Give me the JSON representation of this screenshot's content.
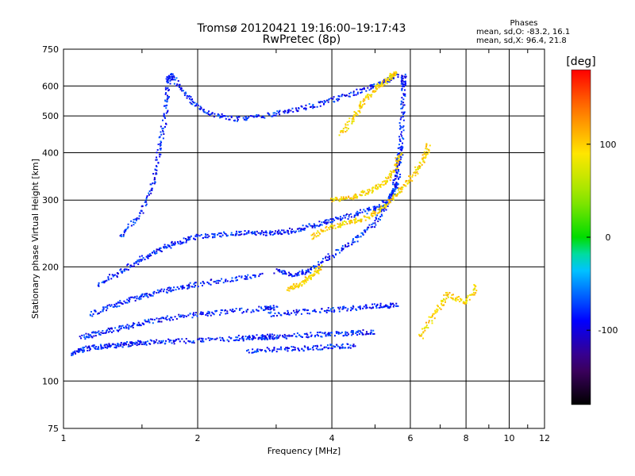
{
  "chart_data": {
    "type": "scatter",
    "title": "Tromsø 20120421 19:16:00–19:17:43",
    "subtitle": "RwPretec (8p)",
    "phases_box": {
      "heading": "Phases",
      "line_o": "mean, sd,O: -83.2, 16.1",
      "line_x": "mean, sd,X:  96.4, 21.8"
    },
    "xlabel": "Frequency [MHz]",
    "ylabel": "Stationary phase Virtual Height [km]",
    "xscale": "log",
    "yscale": "log",
    "xlim": [
      1,
      12
    ],
    "ylim": [
      75,
      750
    ],
    "x_ticks": [
      1,
      2,
      4,
      6,
      8,
      10,
      12
    ],
    "x_tick_labels": [
      "1",
      "2",
      "4",
      "6",
      "8",
      "10",
      "12"
    ],
    "y_ticks": [
      75,
      100,
      200,
      300,
      400,
      500,
      600,
      750
    ],
    "y_tick_labels": [
      "75",
      "100",
      "200",
      "300",
      "400",
      "500",
      "600",
      "750"
    ],
    "grid": true,
    "colorbar": {
      "label": "[deg]",
      "range": [
        -180,
        180
      ],
      "ticks": [
        -100,
        0,
        100
      ],
      "tick_labels": [
        "-100",
        "0",
        "100"
      ]
    },
    "series": [
      {
        "mode": "O",
        "mean_phase_deg": -83.2,
        "traces": [
          {
            "points": [
              [
                1.05,
                118
              ],
              [
                1.1,
                121
              ],
              [
                1.2,
                123
              ],
              [
                1.3,
                124
              ],
              [
                1.4,
                125
              ],
              [
                1.5,
                126
              ],
              [
                1.7,
                127
              ],
              [
                2.0,
                128
              ],
              [
                2.4,
                129
              ],
              [
                2.8,
                130
              ],
              [
                3.0,
                131
              ]
            ]
          },
          {
            "points": [
              [
                1.1,
                130
              ],
              [
                1.2,
                134
              ],
              [
                1.35,
                138
              ],
              [
                1.5,
                142
              ],
              [
                1.7,
                146
              ],
              [
                2.0,
                150
              ],
              [
                2.3,
                152
              ],
              [
                2.8,
                155
              ],
              [
                3.0,
                156
              ]
            ]
          },
          {
            "points": [
              [
                1.15,
                150
              ],
              [
                1.3,
                158
              ],
              [
                1.45,
                165
              ],
              [
                1.6,
                170
              ],
              [
                1.8,
                176
              ],
              [
                2.0,
                180
              ],
              [
                2.4,
                186
              ],
              [
                2.8,
                190
              ]
            ]
          },
          {
            "points": [
              [
                1.2,
                180
              ],
              [
                1.35,
                195
              ],
              [
                1.5,
                210
              ],
              [
                1.65,
                222
              ],
              [
                1.8,
                232
              ],
              [
                2.0,
                240
              ],
              [
                2.3,
                244
              ],
              [
                2.6,
                246
              ],
              [
                2.9,
                245
              ],
              [
                3.2,
                248
              ],
              [
                3.6,
                256
              ],
              [
                4.0,
                265
              ],
              [
                4.5,
                275
              ],
              [
                5.0,
                285
              ],
              [
                5.4,
                300
              ],
              [
                5.6,
                330
              ],
              [
                5.7,
                400
              ],
              [
                5.75,
                500
              ],
              [
                5.8,
                600
              ],
              [
                5.8,
                640
              ]
            ]
          },
          {
            "points": [
              [
                1.35,
                240
              ],
              [
                1.5,
                280
              ],
              [
                1.6,
                340
              ],
              [
                1.65,
                420
              ],
              [
                1.7,
                520
              ],
              [
                1.72,
                620
              ],
              [
                1.75,
                640
              ],
              [
                1.9,
                560
              ],
              [
                2.1,
                510
              ],
              [
                2.4,
                490
              ],
              [
                2.8,
                500
              ],
              [
                3.2,
                515
              ],
              [
                3.7,
                535
              ],
              [
                4.2,
                560
              ],
              [
                4.8,
                590
              ],
              [
                5.3,
                620
              ],
              [
                5.6,
                640
              ]
            ]
          },
          {
            "points": [
              [
                3.0,
                195
              ],
              [
                3.3,
                190
              ],
              [
                3.6,
                196
              ],
              [
                4.0,
                215
              ],
              [
                4.5,
                235
              ],
              [
                5.0,
                260
              ],
              [
                5.4,
                300
              ],
              [
                5.6,
                350
              ],
              [
                5.7,
                420
              ]
            ]
          },
          {
            "points": [
              [
                2.9,
                150
              ],
              [
                3.4,
                152
              ],
              [
                4.0,
                154
              ],
              [
                4.6,
                156
              ],
              [
                5.2,
                158
              ],
              [
                5.6,
                158
              ]
            ]
          },
          {
            "points": [
              [
                2.5,
                130
              ],
              [
                3.0,
                131
              ],
              [
                3.5,
                132
              ],
              [
                4.0,
                133
              ],
              [
                4.5,
                134
              ],
              [
                5.0,
                135
              ]
            ]
          },
          {
            "points": [
              [
                2.6,
                120
              ],
              [
                3.0,
                121
              ],
              [
                3.5,
                122
              ],
              [
                4.0,
                123
              ],
              [
                4.5,
                124
              ]
            ]
          }
        ]
      },
      {
        "mode": "X",
        "mean_phase_deg": 96.4,
        "traces": [
          {
            "points": [
              [
                3.6,
                240
              ],
              [
                4.0,
                255
              ],
              [
                4.4,
                262
              ],
              [
                4.8,
                270
              ],
              [
                5.2,
                285
              ],
              [
                5.6,
                310
              ],
              [
                6.0,
                340
              ],
              [
                6.4,
                380
              ],
              [
                6.6,
                420
              ]
            ]
          },
          {
            "points": [
              [
                4.0,
                300
              ],
              [
                4.4,
                305
              ],
              [
                4.8,
                315
              ],
              [
                5.2,
                330
              ],
              [
                5.5,
                355
              ],
              [
                5.7,
                400
              ]
            ]
          },
          {
            "points": [
              [
                3.2,
                175
              ],
              [
                3.4,
                180
              ],
              [
                3.6,
                190
              ],
              [
                3.8,
                200
              ]
            ]
          },
          {
            "points": [
              [
                4.2,
                450
              ],
              [
                4.5,
                500
              ],
              [
                4.8,
                560
              ],
              [
                5.1,
                600
              ],
              [
                5.4,
                630
              ],
              [
                5.6,
                650
              ]
            ]
          },
          {
            "points": [
              [
                6.3,
                130
              ],
              [
                6.8,
                150
              ],
              [
                7.3,
                170
              ],
              [
                8.0,
                160
              ],
              [
                8.5,
                180
              ]
            ]
          }
        ]
      }
    ]
  }
}
